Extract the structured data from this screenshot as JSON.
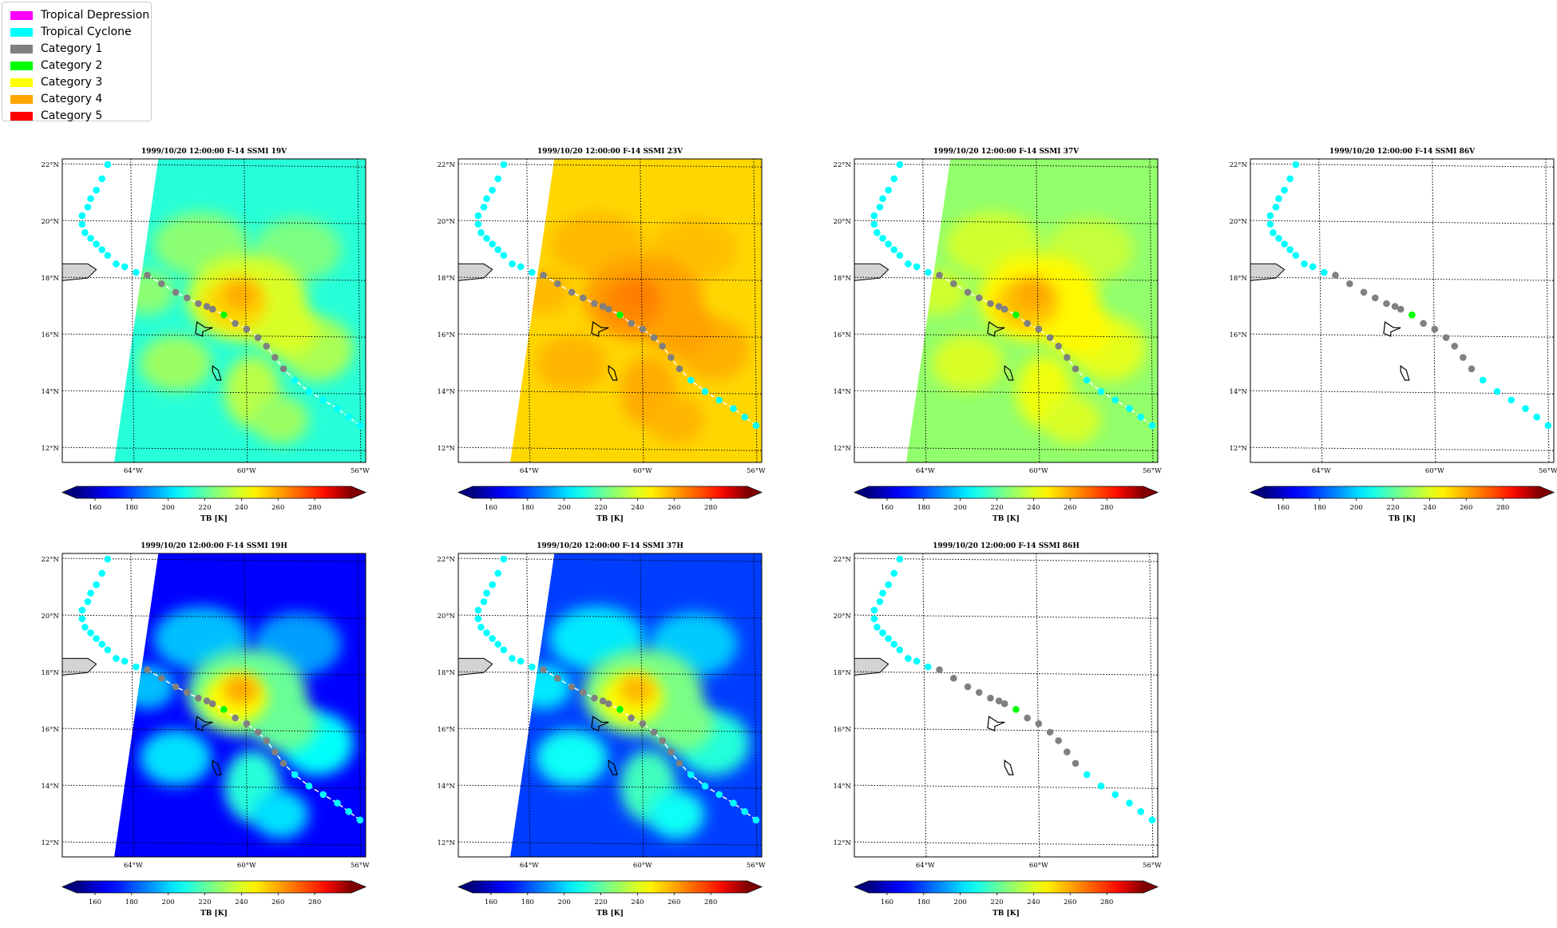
{
  "legend": {
    "items": [
      {
        "label": "Tropical Depression",
        "color": "#ff00ff"
      },
      {
        "label": "Tropical Cyclone",
        "color": "#00ffff"
      },
      {
        "label": "Category 1",
        "color": "#808080"
      },
      {
        "label": "Category 2",
        "color": "#00ff00"
      },
      {
        "label": "Category 3",
        "color": "#ffff00"
      },
      {
        "label": "Category 4",
        "color": "#ffa500"
      },
      {
        "label": "Category 5",
        "color": "#ff0000"
      }
    ]
  },
  "chart_data": {
    "type": "heatmap",
    "map": {
      "lon_range": [
        -66.5,
        -55.8
      ],
      "lat_range": [
        11.5,
        22.2
      ],
      "lon_ticks": [
        {
          "value": -64,
          "label": "64°W"
        },
        {
          "value": -60,
          "label": "60°W"
        },
        {
          "value": -56,
          "label": "56°W"
        }
      ],
      "lat_ticks": [
        {
          "value": 12,
          "label": "12°N"
        },
        {
          "value": 14,
          "label": "14°N"
        },
        {
          "value": 16,
          "label": "16°N"
        },
        {
          "value": 18,
          "label": "18°N"
        },
        {
          "value": 20,
          "label": "20°N"
        },
        {
          "value": 22,
          "label": "22°N"
        }
      ],
      "grid": true
    },
    "colorbar": {
      "label": "TB [K]",
      "range": [
        150,
        300
      ],
      "ticks": [
        "160",
        "180",
        "200",
        "220",
        "240",
        "260",
        "280"
      ],
      "tick_values": [
        160,
        180,
        200,
        220,
        240,
        260,
        280
      ],
      "extend": "both",
      "colormap": "jet"
    },
    "track": [
      {
        "lon": -64.9,
        "lat": 22.0,
        "cat": "Tropical Cyclone"
      },
      {
        "lon": -65.1,
        "lat": 21.5,
        "cat": "Tropical Cyclone"
      },
      {
        "lon": -65.3,
        "lat": 21.1,
        "cat": "Tropical Cyclone"
      },
      {
        "lon": -65.5,
        "lat": 20.8,
        "cat": "Tropical Cyclone"
      },
      {
        "lon": -65.6,
        "lat": 20.5,
        "cat": "Tropical Cyclone"
      },
      {
        "lon": -65.8,
        "lat": 20.2,
        "cat": "Tropical Cyclone"
      },
      {
        "lon": -65.8,
        "lat": 19.9,
        "cat": "Tropical Cyclone"
      },
      {
        "lon": -65.7,
        "lat": 19.6,
        "cat": "Tropical Cyclone"
      },
      {
        "lon": -65.5,
        "lat": 19.4,
        "cat": "Tropical Cyclone"
      },
      {
        "lon": -65.3,
        "lat": 19.2,
        "cat": "Tropical Cyclone"
      },
      {
        "lon": -65.1,
        "lat": 19.0,
        "cat": "Tropical Cyclone"
      },
      {
        "lon": -64.9,
        "lat": 18.8,
        "cat": "Tropical Cyclone"
      },
      {
        "lon": -64.6,
        "lat": 18.5,
        "cat": "Tropical Cyclone"
      },
      {
        "lon": -64.3,
        "lat": 18.4,
        "cat": "Tropical Cyclone"
      },
      {
        "lon": -63.9,
        "lat": 18.2,
        "cat": "Tropical Cyclone"
      },
      {
        "lon": -63.5,
        "lat": 18.1,
        "cat": "Category 1"
      },
      {
        "lon": -63.0,
        "lat": 17.8,
        "cat": "Category 1"
      },
      {
        "lon": -62.5,
        "lat": 17.5,
        "cat": "Category 1"
      },
      {
        "lon": -62.1,
        "lat": 17.3,
        "cat": "Category 1"
      },
      {
        "lon": -61.7,
        "lat": 17.1,
        "cat": "Category 1"
      },
      {
        "lon": -61.4,
        "lat": 17.0,
        "cat": "Category 1"
      },
      {
        "lon": -61.2,
        "lat": 16.9,
        "cat": "Category 1"
      },
      {
        "lon": -60.8,
        "lat": 16.7,
        "cat": "Category 2"
      },
      {
        "lon": -60.4,
        "lat": 16.4,
        "cat": "Category 1"
      },
      {
        "lon": -60.0,
        "lat": 16.2,
        "cat": "Category 1"
      },
      {
        "lon": -59.6,
        "lat": 15.9,
        "cat": "Category 1"
      },
      {
        "lon": -59.3,
        "lat": 15.6,
        "cat": "Category 1"
      },
      {
        "lon": -59.0,
        "lat": 15.2,
        "cat": "Category 1"
      },
      {
        "lon": -58.7,
        "lat": 14.8,
        "cat": "Category 1"
      },
      {
        "lon": -58.3,
        "lat": 14.4,
        "cat": "Tropical Cyclone"
      },
      {
        "lon": -57.8,
        "lat": 14.0,
        "cat": "Tropical Cyclone"
      },
      {
        "lon": -57.3,
        "lat": 13.7,
        "cat": "Tropical Cyclone"
      },
      {
        "lon": -56.8,
        "lat": 13.4,
        "cat": "Tropical Cyclone"
      },
      {
        "lon": -56.4,
        "lat": 13.1,
        "cat": "Tropical Cyclone"
      },
      {
        "lon": -56.0,
        "lat": 12.8,
        "cat": "Tropical Cyclone"
      }
    ],
    "panels": [
      {
        "title": "1999/10/20 12:00:00  F-14 SSMI 19V",
        "background_tb": 212,
        "core_tb": 262,
        "has_data": true
      },
      {
        "title": "1999/10/20 12:00:00  F-14 SSMI 23V",
        "background_tb": 252,
        "core_tb": 268,
        "has_data": true
      },
      {
        "title": "1999/10/20 12:00:00  F-14 SSMI 37V",
        "background_tb": 228,
        "core_tb": 262,
        "has_data": true
      },
      {
        "title": "1999/10/20 12:00:00  F-14 SSMI 86V",
        "background_tb": null,
        "core_tb": null,
        "has_data": false
      },
      {
        "title": "1999/10/20 12:00:00  F-14 SSMI 19H",
        "background_tb": 168,
        "core_tb": 265,
        "has_data": true
      },
      {
        "title": "1999/10/20 12:00:00  F-14 SSMI 37H",
        "background_tb": 178,
        "core_tb": 262,
        "has_data": true
      },
      {
        "title": "1999/10/20 12:00:00  F-14 SSMI 86H",
        "background_tb": null,
        "core_tb": null,
        "has_data": false
      }
    ]
  }
}
